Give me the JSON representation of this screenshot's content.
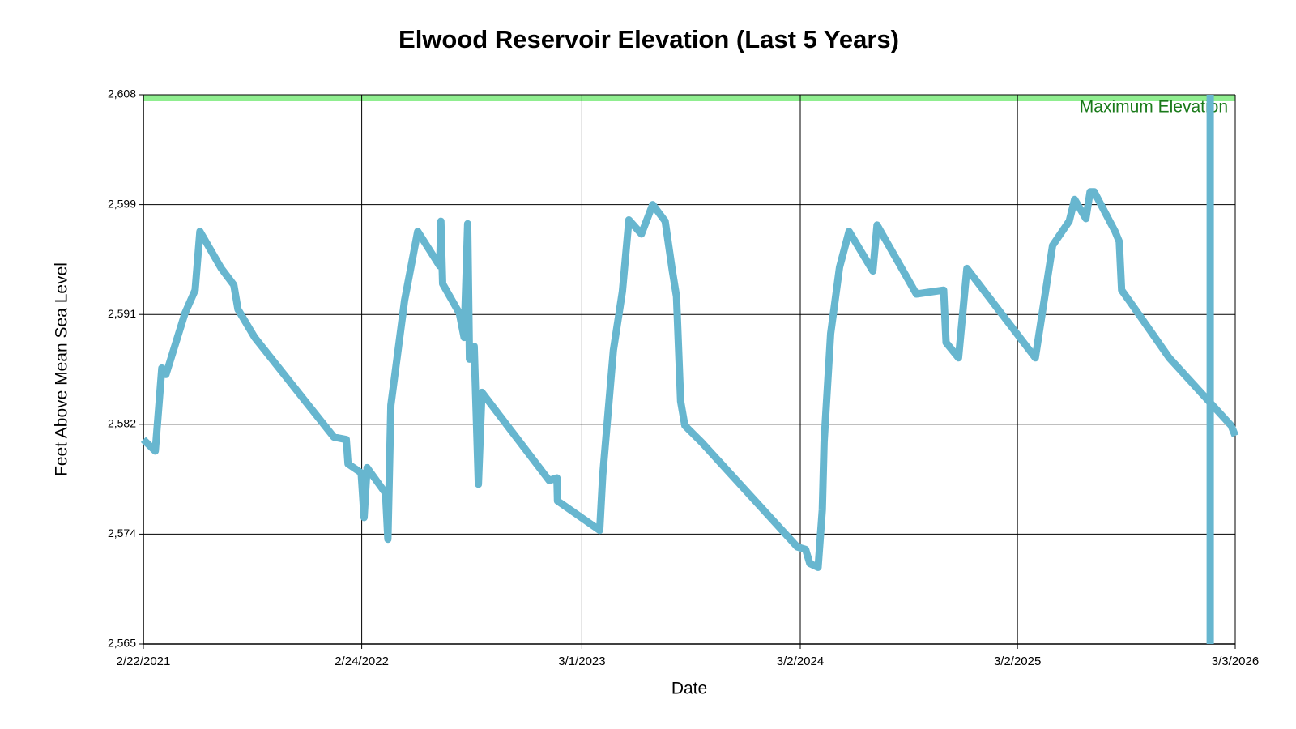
{
  "chart_data": {
    "type": "line",
    "title": "Elwood Reservoir Elevation (Last 5 Years)",
    "x_label": "Date",
    "y_label": "Feet Above Mean Sea Level",
    "xlim": [
      "2021-02-22",
      "2026-03-03"
    ],
    "xticks": [
      {
        "value": "2021-02-22",
        "label": "2/22/2021"
      },
      {
        "value": "2022-02-24",
        "label": "2/24/2022"
      },
      {
        "value": "2023-03-01",
        "label": "3/1/2023"
      },
      {
        "value": "2024-03-02",
        "label": "3/2/2024"
      },
      {
        "value": "2025-03-02",
        "label": "3/2/2025"
      },
      {
        "value": "2026-03-03",
        "label": "3/3/2026"
      }
    ],
    "ylim": [
      2565,
      2608
    ],
    "yticks": [
      {
        "value": 2565,
        "label": "2,565"
      },
      {
        "value": 2573.6,
        "label": "2,574"
      },
      {
        "value": 2582.2,
        "label": "2,582"
      },
      {
        "value": 2590.8,
        "label": "2,591"
      },
      {
        "value": 2599.4,
        "label": "2,599"
      },
      {
        "value": 2608,
        "label": "2,608"
      }
    ],
    "grid": true,
    "max_elevation": {
      "value": 2608,
      "label": "Maximum Elevation",
      "color": "#90ee90",
      "label_color": "#1a7a1a"
    },
    "series": [
      {
        "color": "#67b6cf",
        "x": [
          "2021-02-22",
          "2021-03-14",
          "2021-03-25",
          "2021-04-01",
          "2021-05-03",
          "2021-05-20",
          "2021-05-28",
          "2021-07-03",
          "2021-07-24",
          "2021-07-31",
          "2021-08-28",
          "2022-01-08",
          "2022-01-29",
          "2022-02-01",
          "2022-02-23",
          "2022-02-28",
          "2022-03-05",
          "2022-04-05",
          "2022-04-09",
          "2022-04-14",
          "2022-05-07",
          "2022-05-29",
          "2022-07-05",
          "2022-07-07",
          "2022-07-10",
          "2022-08-07",
          "2022-08-15",
          "2022-08-21",
          "2022-08-24",
          "2022-09-01",
          "2022-09-08",
          "2022-09-14",
          "2023-01-05",
          "2023-01-18",
          "2023-01-19",
          "2023-03-31",
          "2023-04-05",
          "2023-04-23",
          "2023-05-08",
          "2023-05-19",
          "2023-06-09",
          "2023-06-28",
          "2023-07-19",
          "2023-07-31",
          "2023-08-07",
          "2023-08-14",
          "2023-08-21",
          "2023-09-18",
          "2024-02-26",
          "2024-03-11",
          "2024-03-18",
          "2024-04-01",
          "2024-04-08",
          "2024-04-11",
          "2024-04-22",
          "2024-05-07",
          "2024-05-23",
          "2024-07-02",
          "2024-07-09",
          "2024-09-13",
          "2024-10-29",
          "2024-11-02",
          "2024-11-23",
          "2024-12-07",
          "2025-04-01",
          "2025-04-30",
          "2025-05-28",
          "2025-06-06",
          "2025-06-25",
          "2025-07-02",
          "2025-07-09",
          "2025-08-13",
          "2025-08-20",
          "2025-08-24",
          "2025-09-10",
          "2025-11-12",
          "2026-02-24",
          "2026-03-03"
        ],
        "values": [
          2581.0,
          2580.1,
          2586.6,
          2586.1,
          2590.9,
          2592.7,
          2597.3,
          2594.4,
          2593.1,
          2591.2,
          2589.0,
          2581.2,
          2581.0,
          2579.1,
          2578.4,
          2574.9,
          2578.8,
          2576.8,
          2573.2,
          2583.7,
          2591.9,
          2597.3,
          2594.6,
          2598.1,
          2593.2,
          2590.9,
          2589.0,
          2597.9,
          2587.3,
          2588.3,
          2577.5,
          2584.7,
          2577.8,
          2578.0,
          2576.2,
          2573.9,
          2578.2,
          2588.0,
          2592.6,
          2598.2,
          2597.1,
          2599.4,
          2598.1,
          2594.2,
          2592.2,
          2584.0,
          2582.1,
          2580.8,
          2572.6,
          2572.4,
          2571.3,
          2571.0,
          2575.5,
          2580.8,
          2589.3,
          2594.5,
          2597.3,
          2594.2,
          2597.8,
          2592.4,
          2592.7,
          2588.6,
          2587.4,
          2594.4,
          2587.4,
          2596.2,
          2598.1,
          2599.8,
          2598.3,
          2600.4,
          2600.4,
          2597.3,
          2596.5,
          2592.7,
          2591.6,
          2587.4,
          2582.1,
          2581.3
        ]
      },
      {
        "color": "#67b6cf",
        "x": [
          "2026-01-20",
          "2026-01-20"
        ],
        "values": [
          2565,
          2608
        ]
      }
    ]
  }
}
